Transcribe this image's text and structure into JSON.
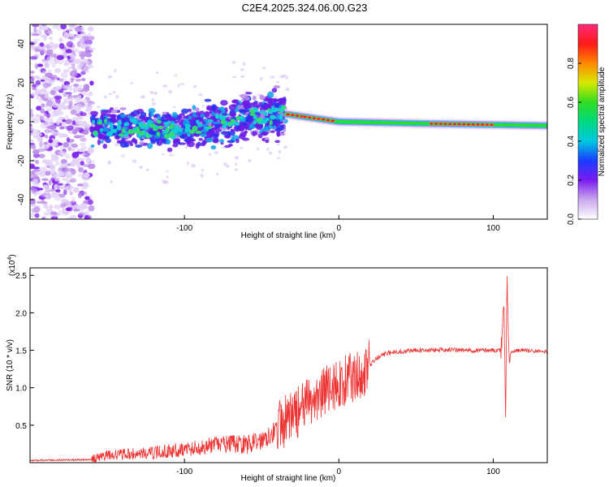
{
  "figure_title": "C2E4.2025.324.06.00.G23",
  "chart_data": [
    {
      "type": "heatmap",
      "name": "spectrogram",
      "xlabel": "Height of straight line (km)",
      "ylabel": "Frequency (Hz)",
      "xlim": [
        -200,
        135
      ],
      "ylim": [
        -50,
        50
      ],
      "x_ticks": [
        -100,
        0,
        100
      ],
      "y_ticks": [
        -40,
        -20,
        0,
        20,
        40
      ],
      "colorbar": {
        "label": "Normalized spectral amplitude",
        "range": [
          0,
          1
        ],
        "ticks": [
          0.0,
          0.2,
          0.4,
          0.6,
          0.8
        ]
      },
      "features": {
        "noise_region_x": [
          -200,
          -160
        ],
        "broad_band_x": [
          -160,
          -35
        ],
        "band_center_hz": {
          "x": [
            -160,
            -100,
            -60,
            -35,
            0,
            60,
            135
          ],
          "y": [
            -3,
            -4,
            2,
            4,
            0,
            -1,
            -2
          ]
        },
        "strong_line_x": [
          -35,
          135
        ],
        "peak_segments_x": [
          [
            -33,
            -23
          ],
          [
            -22,
            -6
          ],
          [
            -4,
            -2
          ],
          [
            60,
            100
          ]
        ]
      }
    },
    {
      "type": "line",
      "name": "snr",
      "xlabel": "Height of straight line (km)",
      "ylabel": "SNR (10 * v/v)",
      "scale_label": "(x10",
      "scale_exp": "4",
      "scale_close": ")",
      "xlim": [
        -200,
        135
      ],
      "ylim": [
        0,
        2.6
      ],
      "x_ticks": [
        -100,
        0,
        100
      ],
      "y_ticks": [
        0.5,
        1.0,
        1.5,
        2.0,
        2.5
      ],
      "color": "#ee3333",
      "series": [
        {
          "name": "SNR",
          "x": [
            -200,
            -160,
            -150,
            -120,
            -100,
            -90,
            -80,
            -70,
            -60,
            -50,
            -45,
            -40,
            -35,
            -30,
            -25,
            -20,
            -15,
            -10,
            -5,
            0,
            5,
            10,
            15,
            20,
            25,
            30,
            35,
            40,
            50,
            60,
            70,
            80,
            90,
            100,
            105,
            107,
            108,
            109,
            110,
            115,
            120,
            135
          ],
          "y": [
            0.03,
            0.04,
            0.1,
            0.13,
            0.18,
            0.2,
            0.24,
            0.25,
            0.24,
            0.3,
            0.38,
            0.45,
            0.55,
            0.62,
            0.7,
            0.78,
            0.85,
            0.95,
            1.0,
            1.05,
            1.1,
            1.15,
            1.2,
            1.3,
            1.4,
            1.45,
            1.48,
            1.48,
            1.5,
            1.5,
            1.51,
            1.5,
            1.5,
            1.5,
            1.5,
            2.1,
            0.65,
            2.55,
            1.45,
            1.5,
            1.5,
            1.48
          ]
        }
      ]
    }
  ]
}
